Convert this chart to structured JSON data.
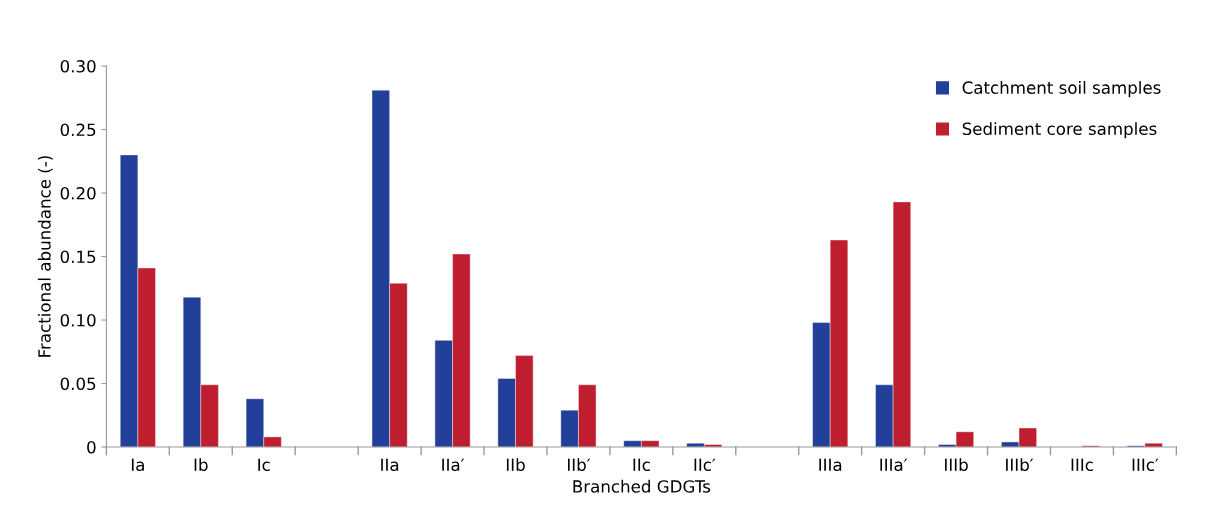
{
  "chart_data": {
    "type": "bar",
    "xlabel": "Branched GDGTs",
    "ylabel": "Fractional abundance (-)",
    "categories": [
      "Ia",
      "Ib",
      "Ic",
      null,
      "IIa",
      "IIa′",
      "IIb",
      "IIb′",
      "IIc",
      "IIc′",
      null,
      "IIIa",
      "IIIa′",
      "IIIb",
      "IIIb′",
      "IIIc",
      "IIIc′"
    ],
    "series": [
      {
        "name": "Catchment soil samples",
        "color": "#223f99",
        "values": [
          0.23,
          0.118,
          0.038,
          null,
          0.281,
          0.084,
          0.054,
          0.029,
          0.005,
          0.003,
          null,
          0.098,
          0.049,
          0.002,
          0.004,
          null,
          0.001
        ]
      },
      {
        "name": "Sediment core samples",
        "color": "#be1e2d",
        "values": [
          0.141,
          0.049,
          0.008,
          null,
          0.129,
          0.152,
          0.072,
          0.049,
          0.005,
          0.002,
          null,
          0.163,
          0.193,
          0.012,
          0.015,
          0.001,
          0.003
        ]
      }
    ],
    "ylim": [
      0,
      0.3
    ],
    "yticks": [
      0,
      0.05,
      {
        "value": 0.1,
        "label": "0.10"
      },
      0.15,
      {
        "value": 0.2,
        "label": "0.20"
      },
      0.25,
      {
        "value": 0.3,
        "label": "0.30"
      }
    ],
    "grid": false,
    "legend": "top right"
  }
}
